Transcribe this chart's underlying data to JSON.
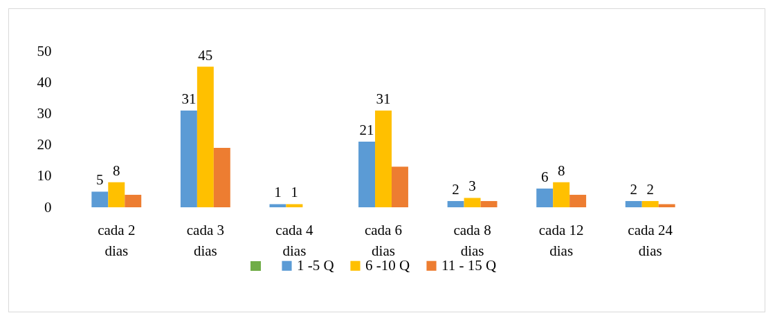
{
  "chart_data": {
    "type": "bar",
    "categories": [
      "cada 2 dias",
      "cada 3 dias",
      "cada 4 dias",
      "cada 6 dias",
      "cada 8 dias",
      "cada 12 dias",
      "cada 24 dias"
    ],
    "series": [
      {
        "name": "1 -5 Q",
        "color": "#5b9bd5",
        "values": [
          5,
          31,
          1,
          21,
          2,
          6,
          2
        ],
        "value_labels": [
          "5",
          "31",
          "1",
          "21",
          "2",
          "6",
          "2"
        ]
      },
      {
        "name": "6 -10 Q",
        "color": "#ffc000",
        "values": [
          8,
          45,
          1,
          31,
          3,
          8,
          2
        ],
        "value_labels": [
          "8",
          "45",
          "1",
          "31",
          "3",
          "8",
          "2"
        ]
      },
      {
        "name": "11 - 15 Q",
        "color": "#ed7d31",
        "values": [
          4,
          19,
          0,
          13,
          2,
          4,
          1
        ]
      }
    ],
    "ylim": [
      0,
      50
    ],
    "yticks": [
      0,
      10,
      20,
      30,
      40,
      50
    ],
    "grid": false,
    "legend": "bottom"
  }
}
